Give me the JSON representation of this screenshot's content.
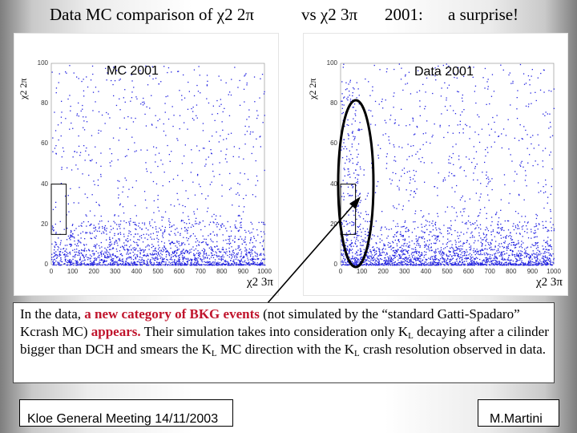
{
  "title": {
    "part1": "Data MC comparison of χ2 2π",
    "part2": "vs χ2 3π",
    "part3": "2001:",
    "part4": "a surprise!"
  },
  "plots": {
    "left_label": "MC 2001",
    "right_label": "Data 2001",
    "y_axis_label": "χ2 2π",
    "x_axis_label": "χ2 3π"
  },
  "chart_data": [
    {
      "type": "scatter",
      "title": "MC 2001",
      "xlabel": "χ2 3π",
      "ylabel": "χ2 2π",
      "xlim": [
        0,
        1000
      ],
      "ylim": [
        0,
        100
      ],
      "xticks": [
        0,
        100,
        200,
        300,
        400,
        500,
        600,
        700,
        800,
        900,
        1000
      ],
      "yticks": [
        0,
        20,
        40,
        60,
        80,
        100
      ],
      "color": "#2020e0",
      "density": "points concentrated at low χ2 2π (0–15) across all χ2 3π; sparse uniform scatter above",
      "annotation_box": {
        "x": [
          0,
          70
        ],
        "y": [
          15,
          40
        ]
      }
    },
    {
      "type": "scatter",
      "title": "Data 2001",
      "xlabel": "χ2 3π",
      "ylabel": "χ2 2π",
      "xlim": [
        0,
        1000
      ],
      "ylim": [
        0,
        100
      ],
      "xticks": [
        0,
        100,
        200,
        300,
        400,
        500,
        600,
        700,
        800,
        900,
        1000
      ],
      "yticks": [
        0,
        20,
        40,
        60,
        80,
        100
      ],
      "color": "#2020e0",
      "density": "points concentrated at low χ2 2π (0–15); additional band at χ2 3π 0–100 extending up in χ2 2π",
      "annotation_box": {
        "x": [
          0,
          70
        ],
        "y": [
          15,
          40
        ]
      }
    }
  ],
  "textbox": {
    "s1": "In the data,",
    "s2": "a new category of BKG events",
    "s3": "(not simulated by the “standard Gatti-Spadaro”  Kcrash MC)",
    "s4": "appears.",
    "s5": "Their simulation takes into consideration only K",
    "s6": "L",
    "s7": "decaying after a cilinder bigger than DCH and smears the K",
    "s8": "L",
    "s9": "MC direction  with the K",
    "s10": "L",
    "s11": "crash resolution observed in data."
  },
  "footer": {
    "left": "Kloe General Meeting 14/11/2003",
    "right": "M.Martini"
  }
}
